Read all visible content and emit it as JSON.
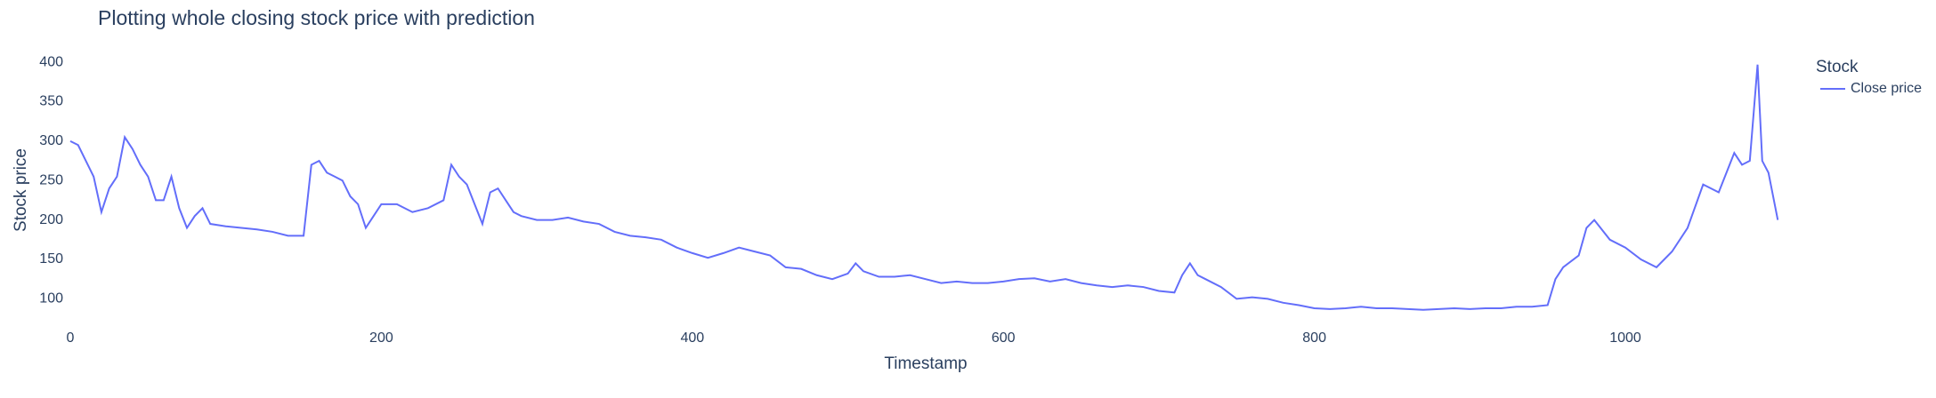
{
  "chart_data": {
    "type": "line",
    "title": "Plotting whole closing stock price with prediction",
    "x_label": "Timestamp",
    "y_label": "Stock price",
    "legend_title": "Stock",
    "legend_position": "right",
    "xlim": [
      0,
      1099
    ],
    "xticks": [
      0,
      200,
      400,
      600,
      800,
      1000
    ],
    "ylim": [
      70,
      417
    ],
    "yticks": [
      100,
      150,
      200,
      250,
      300,
      350,
      400
    ],
    "grid": false,
    "x": [
      0,
      5,
      10,
      15,
      20,
      25,
      30,
      35,
      40,
      45,
      50,
      55,
      60,
      65,
      70,
      75,
      80,
      85,
      90,
      100,
      110,
      120,
      130,
      140,
      150,
      155,
      160,
      165,
      170,
      175,
      180,
      185,
      190,
      195,
      200,
      210,
      220,
      230,
      240,
      245,
      250,
      255,
      260,
      265,
      270,
      275,
      280,
      285,
      290,
      300,
      310,
      320,
      330,
      340,
      350,
      360,
      370,
      380,
      390,
      400,
      410,
      420,
      430,
      440,
      450,
      460,
      470,
      480,
      490,
      500,
      505,
      510,
      520,
      530,
      540,
      550,
      560,
      570,
      580,
      590,
      600,
      610,
      620,
      630,
      640,
      650,
      660,
      670,
      680,
      690,
      700,
      710,
      715,
      720,
      725,
      730,
      740,
      750,
      760,
      770,
      780,
      790,
      800,
      810,
      820,
      830,
      840,
      850,
      860,
      870,
      880,
      890,
      900,
      910,
      920,
      930,
      940,
      950,
      955,
      960,
      970,
      975,
      980,
      990,
      1000,
      1010,
      1020,
      1030,
      1040,
      1050,
      1060,
      1065,
      1070,
      1075,
      1080,
      1085,
      1088,
      1092,
      1098
    ],
    "series": [
      {
        "name": "Close price",
        "color": "#636efa",
        "values": [
          300,
          295,
          275,
          255,
          210,
          240,
          255,
          305,
          290,
          270,
          255,
          225,
          225,
          255,
          215,
          190,
          205,
          215,
          195,
          192,
          190,
          188,
          185,
          180,
          180,
          270,
          275,
          260,
          255,
          250,
          230,
          220,
          190,
          205,
          220,
          220,
          210,
          215,
          225,
          270,
          255,
          245,
          220,
          195,
          235,
          240,
          225,
          210,
          205,
          200,
          200,
          203,
          198,
          195,
          185,
          180,
          178,
          175,
          165,
          158,
          152,
          158,
          165,
          160,
          155,
          140,
          138,
          130,
          125,
          132,
          145,
          135,
          128,
          128,
          130,
          125,
          120,
          122,
          120,
          120,
          122,
          125,
          126,
          122,
          125,
          120,
          117,
          115,
          117,
          115,
          110,
          108,
          130,
          145,
          130,
          125,
          115,
          100,
          102,
          100,
          95,
          92,
          88,
          87,
          88,
          90,
          88,
          88,
          87,
          86,
          87,
          88,
          87,
          88,
          88,
          90,
          90,
          92,
          125,
          140,
          155,
          190,
          200,
          175,
          165,
          150,
          140,
          160,
          190,
          245,
          235,
          260,
          285,
          270,
          275,
          397,
          275,
          260,
          200
        ]
      }
    ]
  }
}
